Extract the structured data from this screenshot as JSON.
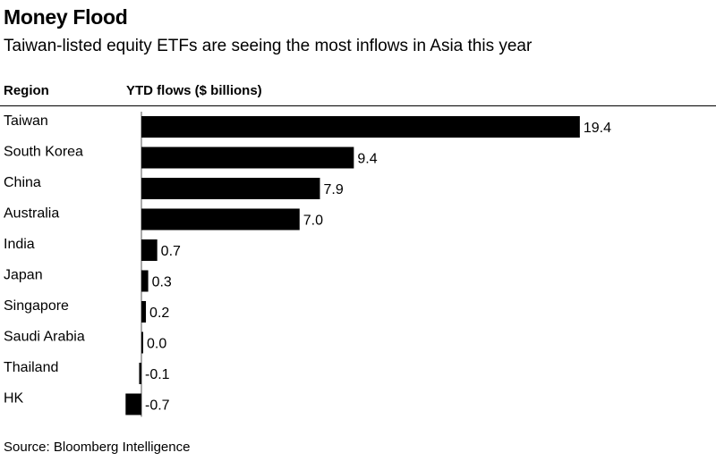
{
  "header": {
    "title": "Money Flood",
    "subtitle": "Taiwan-listed equity ETFs are seeing the most inflows in Asia this year",
    "region_label": "Region",
    "flows_label": "YTD flows ($ billions)"
  },
  "footer": {
    "source": "Source: Bloomberg Intelligence"
  },
  "colors": {
    "bar": "#000000",
    "text": "#000000"
  },
  "chart_data": {
    "type": "bar",
    "orientation": "horizontal",
    "title": "Money Flood",
    "subtitle": "Taiwan-listed equity ETFs are seeing the most inflows in Asia this year",
    "category_header": "Region",
    "value_header": "YTD flows ($ billions)",
    "categories": [
      "Taiwan",
      "South Korea",
      "China",
      "Australia",
      "India",
      "Japan",
      "Singapore",
      "Saudi Arabia",
      "Thailand",
      "HK"
    ],
    "values": [
      19.4,
      9.4,
      7.9,
      7.0,
      0.7,
      0.3,
      0.2,
      0.0,
      -0.1,
      -0.7
    ],
    "labels": [
      "19.4",
      "9.4",
      "7.9",
      "7.0",
      "0.7",
      "0.3",
      "0.2",
      "0.0",
      "-0.1",
      "-0.7"
    ],
    "grid": false,
    "source": "Source: Bloomberg Intelligence"
  }
}
